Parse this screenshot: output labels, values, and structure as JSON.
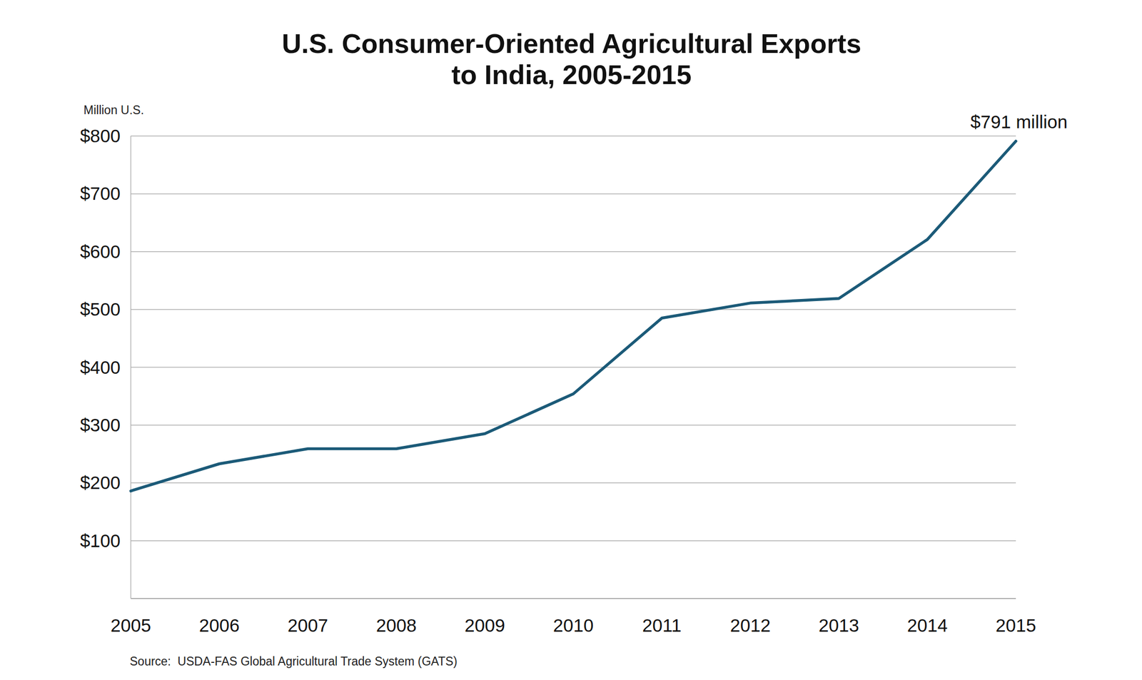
{
  "chart_data": {
    "type": "line",
    "title": [
      "U.S. Consumer-Oriented Agricultural Exports",
      "to India, 2005-2015"
    ],
    "y_label": "Million U.S.",
    "source": "Source:  USDA-FAS Global Agricultural Trade System (GATS)",
    "categories": [
      "2005",
      "2006",
      "2007",
      "2008",
      "2009",
      "2010",
      "2011",
      "2012",
      "2013",
      "2014",
      "2015"
    ],
    "values": [
      186,
      233,
      259,
      259,
      285,
      354,
      485,
      511,
      519,
      621,
      791
    ],
    "color": "#1b5a78",
    "ylim": [
      0,
      800
    ],
    "yticks": [
      {
        "value": 100,
        "label": "$100"
      },
      {
        "value": 200,
        "label": "$200"
      },
      {
        "value": 300,
        "label": "$300"
      },
      {
        "value": 400,
        "label": "$400"
      },
      {
        "value": 500,
        "label": "$500"
      },
      {
        "value": 600,
        "label": "$600"
      },
      {
        "value": 700,
        "label": "$700"
      },
      {
        "value": 800,
        "label": "$800"
      }
    ],
    "grid": true,
    "annotations": [
      {
        "text": "$791 million",
        "category": "2015",
        "value": 791
      }
    ]
  }
}
